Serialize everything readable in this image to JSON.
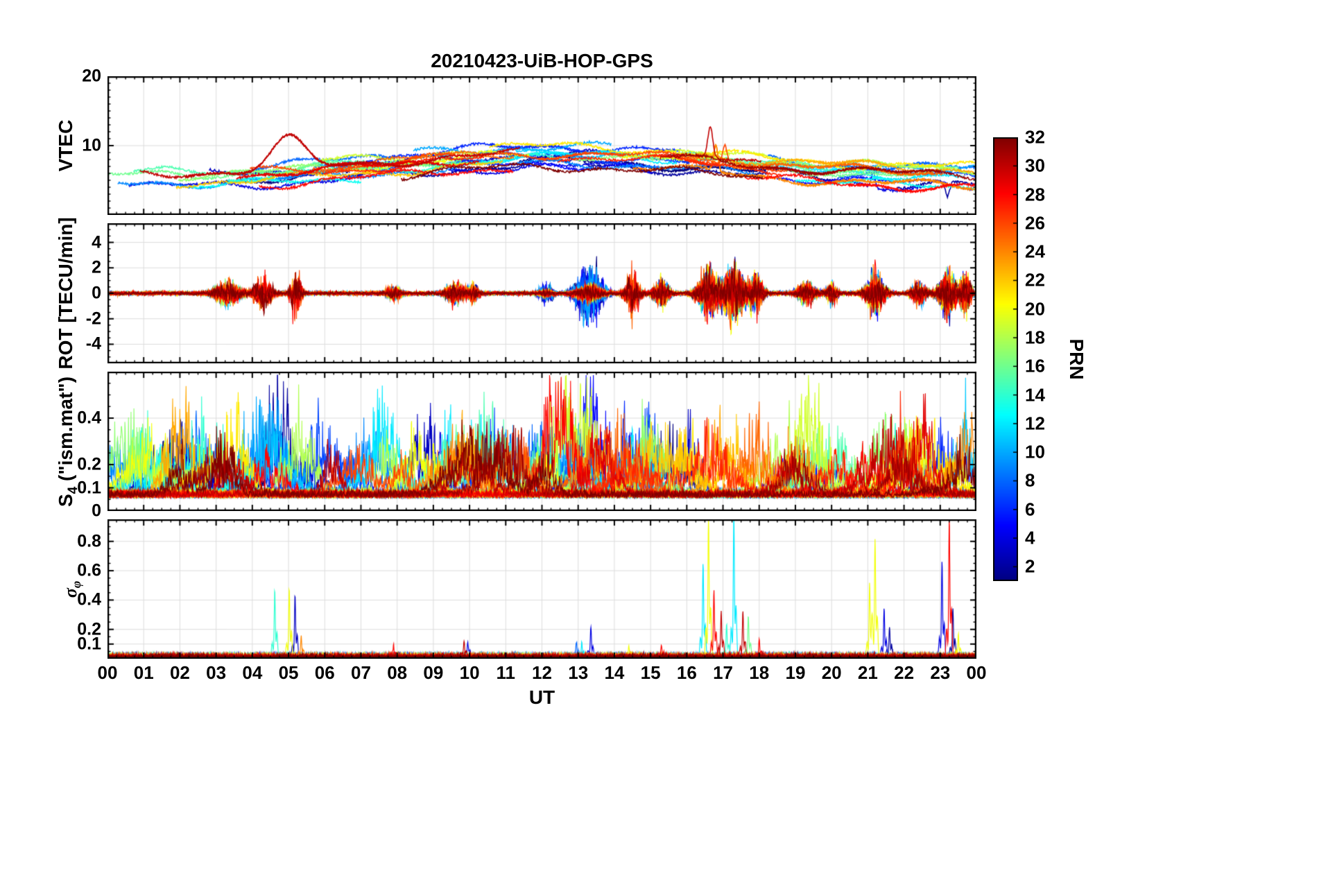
{
  "title": "20210423-UiB-HOP-GPS",
  "colorbar": {
    "label": "PRN",
    "min": 1,
    "max": 32,
    "ticks": [
      2,
      4,
      6,
      8,
      10,
      12,
      14,
      16,
      18,
      20,
      22,
      24,
      26,
      28,
      30,
      32
    ],
    "colormap": "jet",
    "low_color": "#00008f",
    "high_color": "#8f0000"
  },
  "chart_data": {
    "type": "line",
    "title": "20210423-UiB-HOP-GPS",
    "xlabel": "UT",
    "x_range_hours": [
      0,
      24
    ],
    "x_ticks": [
      "00",
      "01",
      "02",
      "03",
      "04",
      "05",
      "06",
      "07",
      "08",
      "09",
      "10",
      "11",
      "12",
      "13",
      "14",
      "15",
      "16",
      "17",
      "18",
      "19",
      "20",
      "21",
      "22",
      "23",
      "00"
    ],
    "grid": true,
    "legend": "colorbar PRN 1-32 jet colormap",
    "panels": [
      {
        "id": "vtec",
        "ylabel": "VTEC",
        "ylabel_pre": "VTEC",
        "ylabel_sub": "",
        "ylabel_post": "",
        "ylim": [
          0,
          20
        ],
        "yticks": [
          10,
          20
        ],
        "yminor": 1,
        "description": "32 GPS PRN traces of vertical TEC, mostly 4-11 TECU, diurnal maximum near 8-17 UT around 9-10, elevated dark-red arc ~11 near 04:30-05:30, spike cluster to ~13-15 near 16:30-17:30, blue dips to ~3 near 23:00-23:30"
      },
      {
        "id": "rot",
        "ylabel": "ROT [TECU/min]",
        "ylabel_pre": "ROT [TECU/min]",
        "ylabel_sub": "",
        "ylabel_post": "",
        "ylim": [
          -5.5,
          5.5
        ],
        "yticks": [
          -4,
          -2,
          0,
          2,
          4
        ],
        "yminor": 0.5,
        "description": "Rate of TEC change, quiet band near 0 with bursts to +/-4 around 03-05, 13-14 (blue), 14.5, 16.5-18, 21, 23-24 UT"
      },
      {
        "id": "s4",
        "ylabel": "S4 (\"ism.mat\")",
        "ylabel_pre": "S",
        "ylabel_sub": "4",
        "ylabel_post": " (\"ism.mat\")",
        "ylim": [
          0,
          0.6
        ],
        "yticks": [
          0,
          0.1,
          0.2,
          0.4
        ],
        "yminor": 0.05,
        "description": "Amplitude scintillation index, noisy baseline 0.05-0.15 with bursts to 0.4-0.6 throughout the day for different PRNs"
      },
      {
        "id": "sigma-phi",
        "ylabel": "σφ",
        "ylabel_pre": "σ",
        "ylabel_sub": "φ",
        "ylabel_post": "",
        "ylim": [
          0,
          0.95
        ],
        "yticks": [
          0.1,
          0.2,
          0.4,
          0.6,
          0.8
        ],
        "yminor": 0.05,
        "description": "Phase scintillation index, near zero with spikes ~0.45 at 04:40-05:20, large spikes to ~0.65-0.97 at 16:30-17:30, ~0.8 at 21:10, ~0.65-0.95 at 23:00-23:30"
      }
    ],
    "vtec_spikes": [
      {
        "t": 5.0,
        "prn": 30,
        "h": 4.2,
        "w": 0.45
      },
      {
        "t": 13.0,
        "prn": 2,
        "h": 1.8,
        "w": 0.1
      },
      {
        "t": 16.65,
        "prn": 30,
        "h": 4.5,
        "w": 0.07
      },
      {
        "t": 16.8,
        "prn": 24,
        "h": 3.6,
        "w": 0.06
      },
      {
        "t": 17.05,
        "prn": 26,
        "h": 2.8,
        "w": 0.06
      },
      {
        "t": 21.15,
        "prn": 4,
        "h": 2.2,
        "w": 0.05
      },
      {
        "t": 23.2,
        "prn": 2,
        "h": -2.2,
        "w": 0.06
      }
    ],
    "rot_bursts": [
      {
        "t": 3.3,
        "a": 1.0,
        "w": 0.35,
        "band": "all"
      },
      {
        "t": 4.3,
        "a": 1.2,
        "w": 0.25,
        "band": "high"
      },
      {
        "t": 5.2,
        "a": 1.6,
        "w": 0.15,
        "band": "high"
      },
      {
        "t": 7.9,
        "a": 0.5,
        "w": 0.2,
        "band": "all"
      },
      {
        "t": 9.6,
        "a": 0.9,
        "w": 0.25,
        "band": "all"
      },
      {
        "t": 10.1,
        "a": 0.7,
        "w": 0.15,
        "band": "all"
      },
      {
        "t": 12.1,
        "a": 0.6,
        "w": 0.2,
        "band": "low"
      },
      {
        "t": 13.3,
        "a": 2.4,
        "w": 0.35,
        "band": "low"
      },
      {
        "t": 14.5,
        "a": 1.5,
        "w": 0.2,
        "band": "high"
      },
      {
        "t": 15.3,
        "a": 1.2,
        "w": 0.2,
        "band": "all"
      },
      {
        "t": 16.6,
        "a": 2.2,
        "w": 0.3,
        "band": "all"
      },
      {
        "t": 17.3,
        "a": 2.4,
        "w": 0.3,
        "band": "all"
      },
      {
        "t": 17.9,
        "a": 1.6,
        "w": 0.2,
        "band": "all"
      },
      {
        "t": 19.3,
        "a": 0.9,
        "w": 0.25,
        "band": "all"
      },
      {
        "t": 20.0,
        "a": 0.8,
        "w": 0.15,
        "band": "all"
      },
      {
        "t": 21.2,
        "a": 1.8,
        "w": 0.25,
        "band": "all"
      },
      {
        "t": 22.4,
        "a": 0.9,
        "w": 0.2,
        "band": "all"
      },
      {
        "t": 23.2,
        "a": 2.0,
        "w": 0.25,
        "band": "all"
      },
      {
        "t": 23.7,
        "a": 1.6,
        "w": 0.15,
        "band": "all"
      }
    ],
    "sigma_phi_events": [
      {
        "t": 4.62,
        "prn": 14,
        "h": 0.45
      },
      {
        "t": 5.02,
        "prn": 20,
        "h": 0.46
      },
      {
        "t": 5.18,
        "prn": 3,
        "h": 0.42
      },
      {
        "t": 5.35,
        "prn": 24,
        "h": 0.14
      },
      {
        "t": 7.9,
        "prn": 28,
        "h": 0.07
      },
      {
        "t": 9.85,
        "prn": 30,
        "h": 0.11
      },
      {
        "t": 9.95,
        "prn": 4,
        "h": 0.1
      },
      {
        "t": 12.95,
        "prn": 8,
        "h": 0.1
      },
      {
        "t": 13.1,
        "prn": 12,
        "h": 0.09
      },
      {
        "t": 13.35,
        "prn": 4,
        "h": 0.2
      },
      {
        "t": 14.4,
        "prn": 20,
        "h": 0.07
      },
      {
        "t": 15.3,
        "prn": 28,
        "h": 0.08
      },
      {
        "t": 16.45,
        "prn": 12,
        "h": 0.64
      },
      {
        "t": 16.6,
        "prn": 20,
        "h": 0.97
      },
      {
        "t": 16.75,
        "prn": 28,
        "h": 0.45
      },
      {
        "t": 16.95,
        "prn": 30,
        "h": 0.3
      },
      {
        "t": 17.1,
        "prn": 14,
        "h": 0.22
      },
      {
        "t": 17.3,
        "prn": 12,
        "h": 0.97
      },
      {
        "t": 17.55,
        "prn": 30,
        "h": 0.3
      },
      {
        "t": 17.7,
        "prn": 16,
        "h": 0.28
      },
      {
        "t": 18.0,
        "prn": 28,
        "h": 0.12
      },
      {
        "t": 21.05,
        "prn": 20,
        "h": 0.5
      },
      {
        "t": 21.2,
        "prn": 20,
        "h": 0.8
      },
      {
        "t": 21.45,
        "prn": 4,
        "h": 0.33
      },
      {
        "t": 21.6,
        "prn": 2,
        "h": 0.2
      },
      {
        "t": 23.05,
        "prn": 4,
        "h": 0.65
      },
      {
        "t": 23.25,
        "prn": 28,
        "h": 0.95
      },
      {
        "t": 23.35,
        "prn": 2,
        "h": 0.33
      },
      {
        "t": 23.5,
        "prn": 20,
        "h": 0.15
      }
    ]
  }
}
